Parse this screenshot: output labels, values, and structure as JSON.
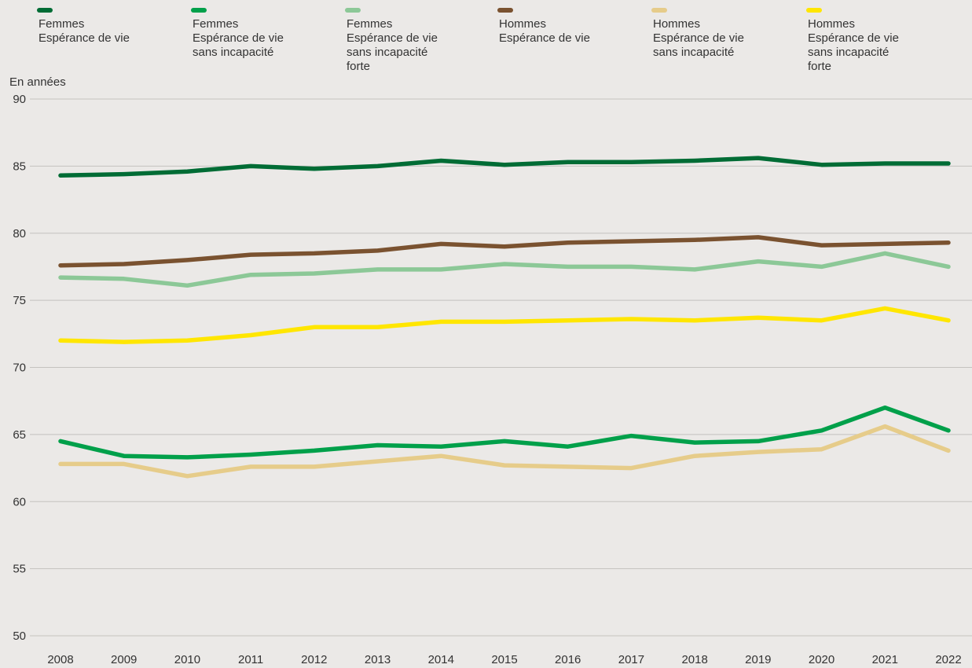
{
  "chart_data": {
    "type": "line",
    "ylabel": "En années",
    "ylim": [
      50,
      90
    ],
    "yticks": [
      50,
      55,
      60,
      65,
      70,
      75,
      80,
      85,
      90
    ],
    "grid": true,
    "legend_position": "top",
    "x": [
      "2008",
      "2009",
      "2010",
      "2011",
      "2012",
      "2013",
      "2014",
      "2015",
      "2016",
      "2017",
      "2018",
      "2019",
      "2020",
      "2021",
      "2022"
    ],
    "series": [
      {
        "name": "Femmes\nEspérance de vie",
        "color": "#006c35",
        "values": [
          84.3,
          84.4,
          84.6,
          85.0,
          84.8,
          85.0,
          85.4,
          85.1,
          85.3,
          85.3,
          85.4,
          85.6,
          85.1,
          85.2,
          85.2
        ]
      },
      {
        "name": "Femmes\nEspérance de vie\nsans incapacité",
        "color": "#00a04a",
        "values": [
          64.5,
          63.4,
          63.3,
          63.5,
          63.8,
          64.2,
          64.1,
          64.5,
          64.1,
          64.9,
          64.4,
          64.5,
          65.3,
          67.0,
          65.3
        ]
      },
      {
        "name": "Femmes\nEspérance de vie\nsans incapacité forte",
        "color": "#8cc897",
        "values": [
          76.7,
          76.6,
          76.1,
          76.9,
          77.0,
          77.3,
          77.3,
          77.7,
          77.5,
          77.5,
          77.3,
          77.9,
          77.5,
          78.5,
          77.5
        ]
      },
      {
        "name": "Hommes\nEspérance de vie",
        "color": "#7a5230",
        "values": [
          77.6,
          77.7,
          78.0,
          78.4,
          78.5,
          78.7,
          79.2,
          79.0,
          79.3,
          79.4,
          79.5,
          79.7,
          79.1,
          79.2,
          79.3
        ]
      },
      {
        "name": "Hommes\nEspérance de vie\nsans incapacité",
        "color": "#e6cc8a",
        "values": [
          62.8,
          62.8,
          61.9,
          62.6,
          62.6,
          63.0,
          63.4,
          62.7,
          62.6,
          62.5,
          63.4,
          63.7,
          63.9,
          65.6,
          63.8
        ]
      },
      {
        "name": "Hommes\nEspérance de vie\nsans incapacité forte",
        "color": "#ffe600",
        "values": [
          72.0,
          71.9,
          72.0,
          72.4,
          73.0,
          73.0,
          73.4,
          73.4,
          73.5,
          73.6,
          73.5,
          73.7,
          73.5,
          74.4,
          73.5
        ]
      }
    ]
  }
}
